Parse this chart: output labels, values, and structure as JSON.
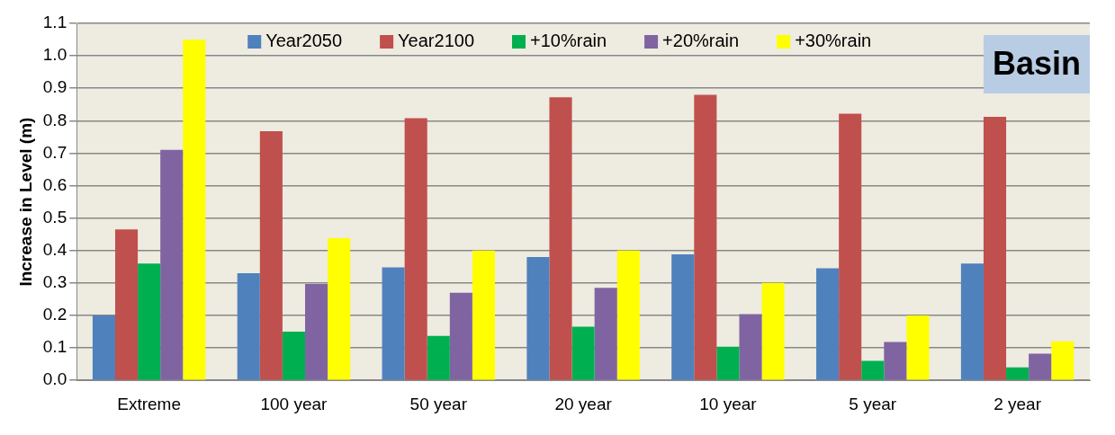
{
  "chart_data": {
    "type": "bar",
    "ylabel": "Increase in Level (m)",
    "categories": [
      "Extreme",
      "100 year",
      "50 year",
      "20 year",
      "10 year",
      "5 year",
      "2 year"
    ],
    "series": [
      {
        "name": "Year2050",
        "color": "#4f81bd",
        "values": [
          0.2,
          0.33,
          0.348,
          0.38,
          0.388,
          0.345,
          0.36
        ]
      },
      {
        "name": "Year2100",
        "color": "#c0504d",
        "values": [
          0.465,
          0.768,
          0.808,
          0.872,
          0.88,
          0.822,
          0.812
        ]
      },
      {
        "name": "+10%rain",
        "color": "#00b050",
        "values": [
          0.36,
          0.15,
          0.137,
          0.165,
          0.104,
          0.06,
          0.04
        ]
      },
      {
        "name": "+20%rain",
        "color": "#8064a2",
        "values": [
          0.71,
          0.297,
          0.27,
          0.285,
          0.204,
          0.118,
          0.082
        ]
      },
      {
        "name": "+30%rain",
        "color": "#ffff00",
        "values": [
          1.05,
          0.438,
          0.4,
          0.4,
          0.3,
          0.2,
          0.12
        ]
      }
    ],
    "ylim": [
      0,
      1.1
    ],
    "yticks": [
      {
        "value": 0,
        "label": "0.0"
      },
      {
        "value": 0.1,
        "label": "0.1"
      },
      {
        "value": 0.2,
        "label": "0.2"
      },
      {
        "value": 0.3,
        "label": "0.3"
      },
      {
        "value": 0.4,
        "label": "0.4"
      },
      {
        "value": 0.5,
        "label": "0.5"
      },
      {
        "value": 0.6,
        "label": "0.6"
      },
      {
        "value": 0.7,
        "label": "0.7"
      },
      {
        "value": 0.8,
        "label": "0.8"
      },
      {
        "value": 0.9,
        "label": "0.9"
      },
      {
        "value": 1.0,
        "label": "1.0"
      },
      {
        "value": 1.1,
        "label": "1.1"
      }
    ],
    "grid": "y",
    "legend": "top",
    "annotations": [
      "Basin"
    ]
  }
}
